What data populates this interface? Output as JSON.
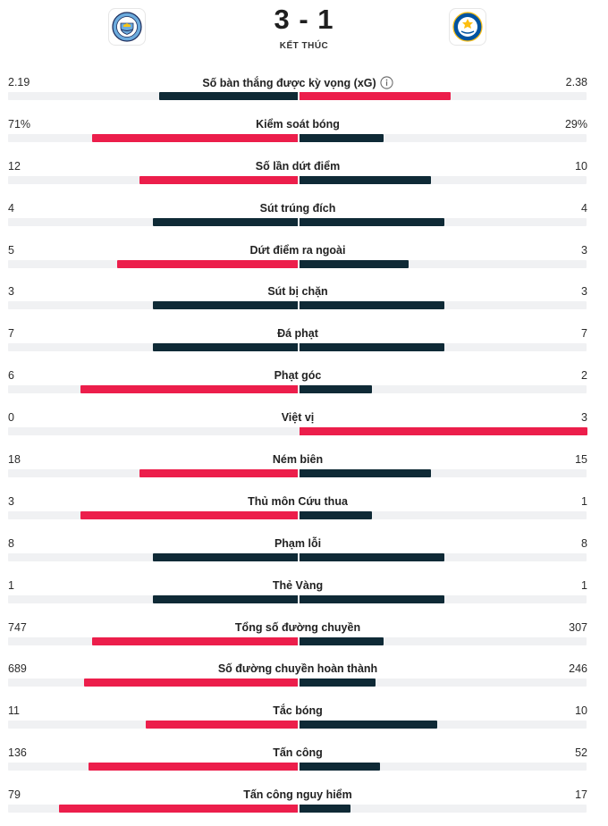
{
  "match": {
    "home_team": "Manchester City",
    "away_team": "Leicester City",
    "score": "3 - 1",
    "status": "KẾT THÚC"
  },
  "colors": {
    "winner": "#ec1e4b",
    "other": "#0f2a36",
    "track": "#f0f1f3"
  },
  "stats": [
    {
      "label": "Số bàn thắng được kỳ vọng (xG)",
      "home": "2.19",
      "away": "2.38",
      "home_num": 2.19,
      "away_num": 2.38,
      "info": true
    },
    {
      "label": "Kiểm soát bóng",
      "home": "71%",
      "away": "29%",
      "home_num": 71,
      "away_num": 29
    },
    {
      "label": "Số lần dứt điểm",
      "home": "12",
      "away": "10",
      "home_num": 12,
      "away_num": 10
    },
    {
      "label": "Sút trúng đích",
      "home": "4",
      "away": "4",
      "home_num": 4,
      "away_num": 4
    },
    {
      "label": "Dứt điểm ra ngoài",
      "home": "5",
      "away": "3",
      "home_num": 5,
      "away_num": 3
    },
    {
      "label": "Sút bị chặn",
      "home": "3",
      "away": "3",
      "home_num": 3,
      "away_num": 3
    },
    {
      "label": "Đá phạt",
      "home": "7",
      "away": "7",
      "home_num": 7,
      "away_num": 7
    },
    {
      "label": "Phạt góc",
      "home": "6",
      "away": "2",
      "home_num": 6,
      "away_num": 2
    },
    {
      "label": "Việt vị",
      "home": "0",
      "away": "3",
      "home_num": 0,
      "away_num": 3
    },
    {
      "label": "Ném biên",
      "home": "18",
      "away": "15",
      "home_num": 18,
      "away_num": 15
    },
    {
      "label": "Thủ môn Cứu thua",
      "home": "3",
      "away": "1",
      "home_num": 3,
      "away_num": 1
    },
    {
      "label": "Phạm lỗi",
      "home": "8",
      "away": "8",
      "home_num": 8,
      "away_num": 8
    },
    {
      "label": "Thẻ Vàng",
      "home": "1",
      "away": "1",
      "home_num": 1,
      "away_num": 1
    },
    {
      "label": "Tổng số đường chuyền",
      "home": "747",
      "away": "307",
      "home_num": 747,
      "away_num": 307
    },
    {
      "label": "Số đường chuyền hoàn thành",
      "home": "689",
      "away": "246",
      "home_num": 689,
      "away_num": 246
    },
    {
      "label": "Tắc bóng",
      "home": "11",
      "away": "10",
      "home_num": 11,
      "away_num": 10
    },
    {
      "label": "Tấn công",
      "home": "136",
      "away": "52",
      "home_num": 136,
      "away_num": 52
    },
    {
      "label": "Tấn công nguy hiểm",
      "home": "79",
      "away": "17",
      "home_num": 79,
      "away_num": 17
    }
  ]
}
